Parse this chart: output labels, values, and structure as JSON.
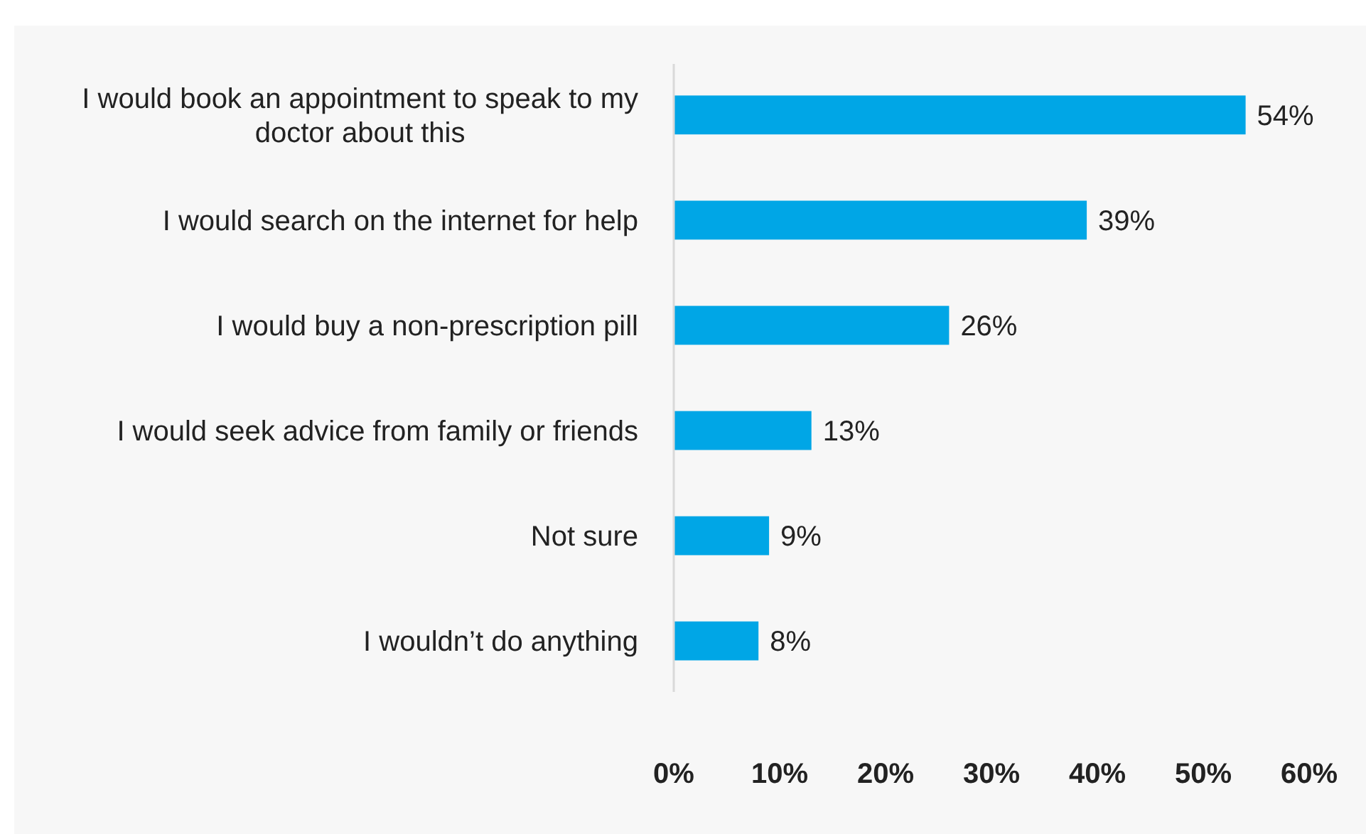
{
  "chart_data": {
    "type": "bar",
    "orientation": "horizontal",
    "categories": [
      "I would book an appointment to speak to my doctor about this",
      "I would search on the internet for help",
      "I would buy a non-prescription pill",
      "I would seek advice from family or friends",
      "Not sure",
      "I wouldn’t do anything"
    ],
    "values": [
      54,
      39,
      26,
      13,
      9,
      8
    ],
    "value_labels": [
      "54%",
      "39%",
      "26%",
      "13%",
      "9%",
      "8%"
    ],
    "color": "#00a6e6",
    "xlim": [
      0,
      60
    ],
    "xticks": [
      {
        "value": 0,
        "label": "0%"
      },
      {
        "value": 10,
        "label": "10%"
      },
      {
        "value": 20,
        "label": "20%"
      },
      {
        "value": 30,
        "label": "30%"
      },
      {
        "value": 40,
        "label": "40%"
      },
      {
        "value": 50,
        "label": "50%"
      },
      {
        "value": 60,
        "label": "60%"
      }
    ],
    "grid": false
  }
}
